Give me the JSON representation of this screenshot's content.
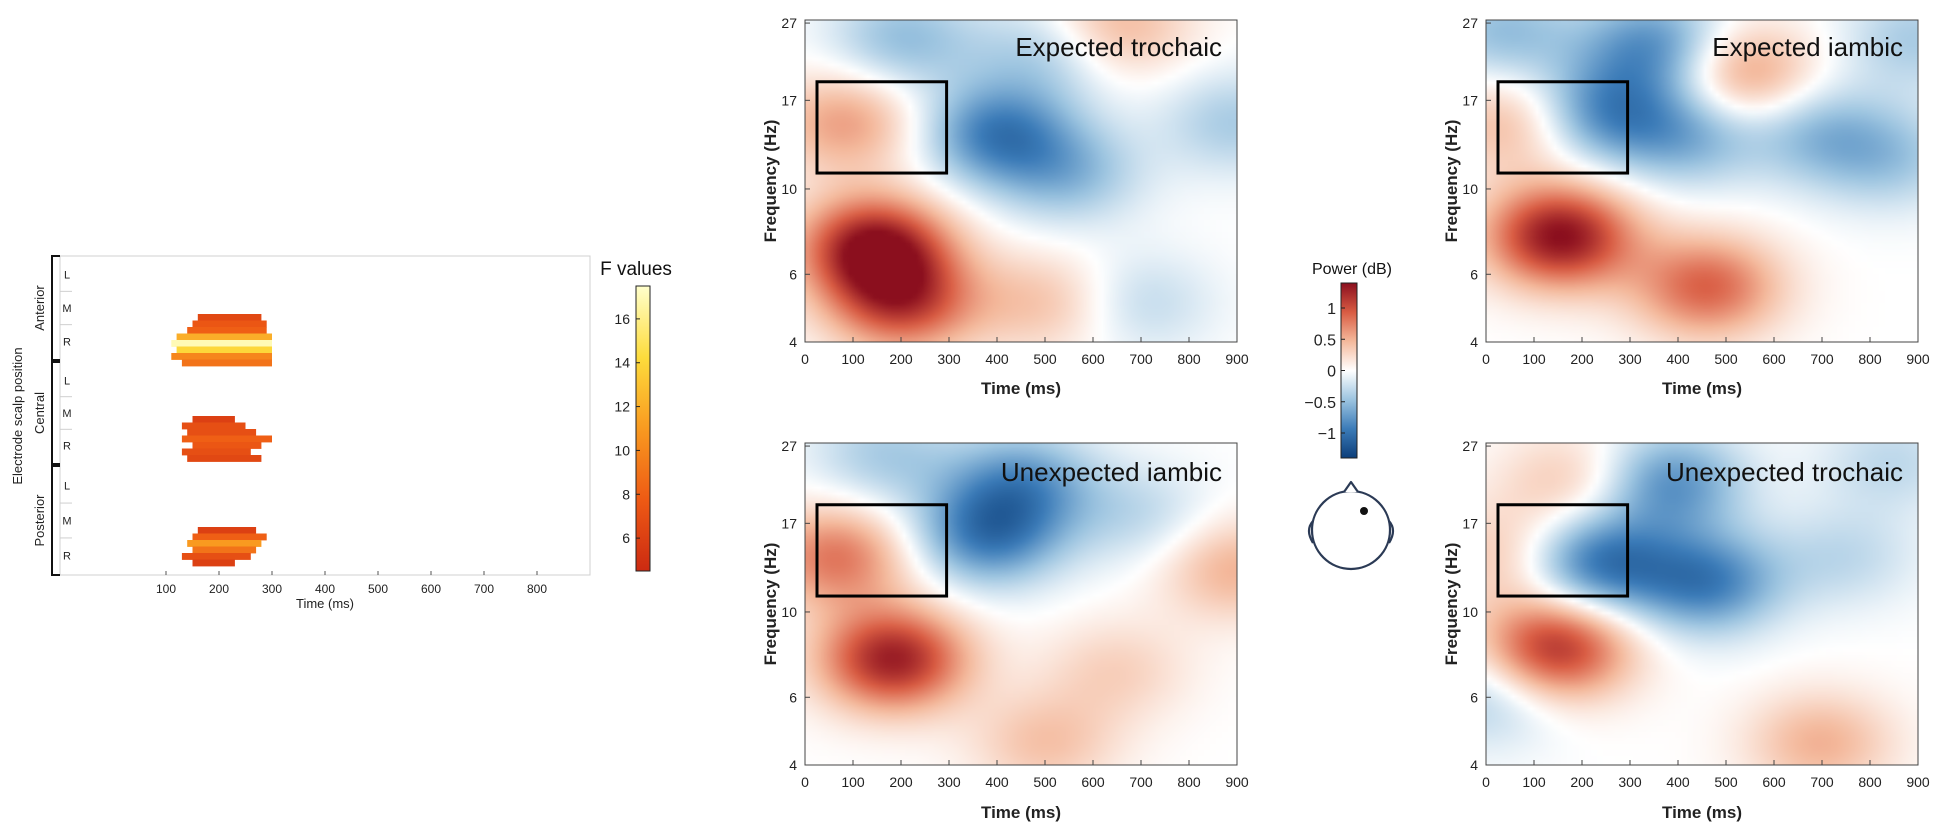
{
  "figure_title": "",
  "chart_data": [
    {
      "type": "heatmap",
      "id": "f-map",
      "xlabel": "Time (ms)",
      "ylabel": "Electrode scalp position",
      "xlim": [
        -100,
        900
      ],
      "xticks": [
        100,
        200,
        300,
        400,
        500,
        600,
        700,
        800
      ],
      "groups": [
        "Anterior",
        "Central",
        "Posterior"
      ],
      "rows": [
        "L",
        "M",
        "R"
      ],
      "colorbar": {
        "label": "F values",
        "range": [
          4.5,
          17.5
        ],
        "ticks": [
          6,
          8,
          10,
          12,
          14,
          16
        ]
      },
      "colormap": [
        "#cc2a12",
        "#ee5a14",
        "#f99a20",
        "#fddc3c",
        "#ffffcc"
      ],
      "clusters": [
        {
          "group": "Anterior",
          "rows": [
            {
              "start": 160,
              "end": 280,
              "f": 6.5
            },
            {
              "start": 150,
              "end": 290,
              "f": 7.5
            },
            {
              "start": 140,
              "end": 290,
              "f": 8
            },
            {
              "start": 120,
              "end": 300,
              "f": 12
            },
            {
              "start": 110,
              "end": 300,
              "f": 17
            },
            {
              "start": 120,
              "end": 300,
              "f": 14
            },
            {
              "start": 110,
              "end": 300,
              "f": 10
            },
            {
              "start": 130,
              "end": 300,
              "f": 9
            }
          ]
        },
        {
          "group": "Central",
          "rows": [
            {
              "start": 150,
              "end": 230,
              "f": 6
            },
            {
              "start": 130,
              "end": 250,
              "f": 7
            },
            {
              "start": 140,
              "end": 270,
              "f": 7
            },
            {
              "start": 130,
              "end": 300,
              "f": 8
            },
            {
              "start": 150,
              "end": 280,
              "f": 7.5
            },
            {
              "start": 130,
              "end": 260,
              "f": 7
            },
            {
              "start": 140,
              "end": 280,
              "f": 6.5
            }
          ]
        },
        {
          "group": "Posterior",
          "rows": [
            {
              "start": 160,
              "end": 270,
              "f": 6
            },
            {
              "start": 150,
              "end": 290,
              "f": 8
            },
            {
              "start": 140,
              "end": 280,
              "f": 11
            },
            {
              "start": 150,
              "end": 270,
              "f": 9
            },
            {
              "start": 130,
              "end": 260,
              "f": 7
            },
            {
              "start": 150,
              "end": 230,
              "f": 6
            }
          ]
        }
      ]
    },
    {
      "type": "heatmap",
      "title": "Expected trochaic",
      "xlabel": "Time (ms)",
      "ylabel": "Frequency (Hz)",
      "xlim": [
        0,
        900
      ],
      "xticks": [
        0,
        100,
        200,
        300,
        400,
        500,
        600,
        700,
        800,
        900
      ],
      "yticks": [
        4,
        6,
        10,
        17,
        27
      ],
      "roi": {
        "time": [
          25,
          295
        ],
        "freq": [
          11,
          19
        ]
      },
      "blobs": [
        {
          "t": 140,
          "f": 7,
          "amp": 1.4
        },
        {
          "t": 200,
          "f": 5,
          "amp": 1.0
        },
        {
          "t": 80,
          "f": 15,
          "amp": 0.6
        },
        {
          "t": 400,
          "f": 14,
          "amp": -0.9
        },
        {
          "t": 550,
          "f": 11,
          "amp": -0.5
        },
        {
          "t": 200,
          "f": 25,
          "amp": -0.5
        },
        {
          "t": 500,
          "f": 23,
          "amp": -0.4
        },
        {
          "t": 650,
          "f": 27,
          "amp": 0.5
        },
        {
          "t": 700,
          "f": 5,
          "amp": -0.3
        },
        {
          "t": 900,
          "f": 15,
          "amp": -0.4
        },
        {
          "t": 500,
          "f": 5,
          "amp": 0.4
        }
      ]
    },
    {
      "type": "heatmap",
      "title": "Expected iambic",
      "xlabel": "Time (ms)",
      "ylabel": "Frequency (Hz)",
      "xlim": [
        0,
        900
      ],
      "xticks": [
        0,
        100,
        200,
        300,
        400,
        500,
        600,
        700,
        800,
        900
      ],
      "yticks": [
        4,
        6,
        10,
        17,
        27
      ],
      "roi": {
        "time": [
          25,
          295
        ],
        "freq": [
          11,
          19
        ]
      },
      "blobs": [
        {
          "t": 150,
          "f": 7.5,
          "amp": 1.4
        },
        {
          "t": 460,
          "f": 5.5,
          "amp": 0.9
        },
        {
          "t": 50,
          "f": 15,
          "amp": 0.5
        },
        {
          "t": 240,
          "f": 16,
          "amp": -0.8
        },
        {
          "t": 350,
          "f": 24,
          "amp": -0.8
        },
        {
          "t": 420,
          "f": 14,
          "amp": -0.6
        },
        {
          "t": 530,
          "f": 20,
          "amp": 0.7
        },
        {
          "t": 700,
          "f": 14,
          "amp": -0.5
        },
        {
          "t": 850,
          "f": 12,
          "amp": -0.4
        },
        {
          "t": 900,
          "f": 25,
          "amp": -0.4
        },
        {
          "t": 30,
          "f": 26,
          "amp": -0.5
        }
      ]
    },
    {
      "type": "heatmap",
      "title": "Unexpected iambic",
      "xlabel": "Time (ms)",
      "ylabel": "Frequency (Hz)",
      "xlim": [
        0,
        900
      ],
      "xticks": [
        0,
        100,
        200,
        300,
        400,
        500,
        600,
        700,
        800,
        900
      ],
      "yticks": [
        4,
        6,
        10,
        17,
        27
      ],
      "roi": {
        "time": [
          25,
          295
        ],
        "freq": [
          11,
          19
        ]
      },
      "blobs": [
        {
          "t": 180,
          "f": 7.5,
          "amp": 1.3
        },
        {
          "t": 60,
          "f": 14,
          "amp": 0.8
        },
        {
          "t": 380,
          "f": 16,
          "amp": -0.9
        },
        {
          "t": 450,
          "f": 22,
          "amp": -0.7
        },
        {
          "t": 160,
          "f": 26,
          "amp": -0.4
        },
        {
          "t": 900,
          "f": 13,
          "amp": 0.5
        },
        {
          "t": 700,
          "f": 18,
          "amp": -0.3
        },
        {
          "t": 650,
          "f": 7,
          "amp": 0.3
        },
        {
          "t": 500,
          "f": 4.5,
          "amp": 0.4
        }
      ]
    },
    {
      "type": "heatmap",
      "title": "Unexpected trochaic",
      "xlabel": "Time (ms)",
      "ylabel": "Frequency (Hz)",
      "xlim": [
        0,
        900
      ],
      "xticks": [
        0,
        100,
        200,
        300,
        400,
        500,
        600,
        700,
        800,
        900
      ],
      "yticks": [
        4,
        6,
        10,
        17,
        27
      ],
      "roi": {
        "time": [
          25,
          295
        ],
        "freq": [
          11,
          19
        ]
      },
      "blobs": [
        {
          "t": 140,
          "f": 8,
          "amp": 1.2
        },
        {
          "t": 30,
          "f": 14,
          "amp": 0.4
        },
        {
          "t": 230,
          "f": 13.5,
          "amp": -1.0
        },
        {
          "t": 460,
          "f": 12,
          "amp": -0.9
        },
        {
          "t": 380,
          "f": 22,
          "amp": -0.8
        },
        {
          "t": 180,
          "f": 22,
          "amp": 0.4
        },
        {
          "t": 0,
          "f": 6,
          "amp": -0.4
        },
        {
          "t": 700,
          "f": 4.5,
          "amp": 0.5
        },
        {
          "t": 750,
          "f": 14,
          "amp": -0.3
        },
        {
          "t": 850,
          "f": 25,
          "amp": -0.3
        }
      ]
    }
  ],
  "power_colorbar": {
    "label": "Power (dB)",
    "range": [
      -1.4,
      1.4
    ],
    "ticks": [
      1,
      0.5,
      0,
      -0.5,
      -1
    ],
    "tick_labels": [
      "1",
      "0.5",
      "0",
      "−0.5",
      "−1"
    ],
    "colormap": [
      "#0d3f7a",
      "#3b7bb8",
      "#9cc4e0",
      "#ffffff",
      "#f4b99c",
      "#d95c43",
      "#8b0f1e"
    ]
  },
  "head_icon": {
    "name": "head-electrode-icon"
  }
}
